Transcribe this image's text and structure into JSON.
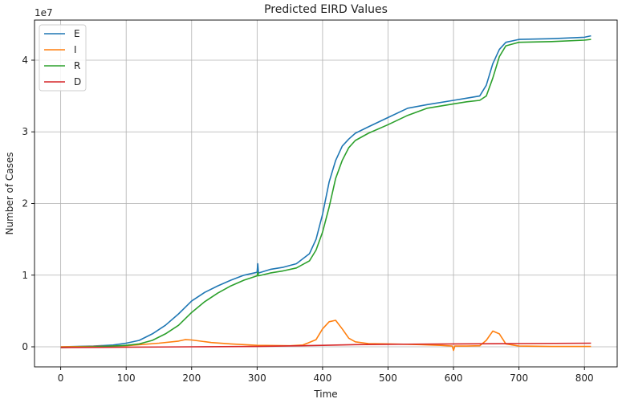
{
  "chart_data": {
    "type": "line",
    "title": "Predicted EIRD Values",
    "xlabel": "Time",
    "ylabel": "Number of Cases",
    "y_multiplier_label": "1e7",
    "xlim": [
      -40,
      850
    ],
    "ylim": [
      -2800000,
      45600000
    ],
    "x_ticks": [
      0,
      100,
      200,
      300,
      400,
      500,
      600,
      700,
      800
    ],
    "y_ticks": [
      0,
      10000000,
      20000000,
      30000000,
      40000000
    ],
    "y_tick_labels": [
      "0",
      "1",
      "2",
      "3",
      "4"
    ],
    "grid": true,
    "legend_position": "top-left",
    "series": [
      {
        "name": "E",
        "color": "#1f77b4",
        "points": [
          [
            0,
            0
          ],
          [
            50,
            100000
          ],
          [
            80,
            250000
          ],
          [
            100,
            500000
          ],
          [
            120,
            900000
          ],
          [
            140,
            1800000
          ],
          [
            160,
            3000000
          ],
          [
            180,
            4600000
          ],
          [
            200,
            6400000
          ],
          [
            220,
            7600000
          ],
          [
            240,
            8500000
          ],
          [
            260,
            9300000
          ],
          [
            280,
            10000000
          ],
          [
            300,
            10400000
          ],
          [
            301,
            11600000
          ],
          [
            302,
            10300000
          ],
          [
            320,
            10800000
          ],
          [
            340,
            11100000
          ],
          [
            360,
            11600000
          ],
          [
            380,
            13000000
          ],
          [
            390,
            15000000
          ],
          [
            400,
            18500000
          ],
          [
            410,
            23000000
          ],
          [
            420,
            26000000
          ],
          [
            430,
            28000000
          ],
          [
            440,
            29000000
          ],
          [
            450,
            29800000
          ],
          [
            470,
            30700000
          ],
          [
            500,
            32000000
          ],
          [
            530,
            33300000
          ],
          [
            560,
            33800000
          ],
          [
            600,
            34400000
          ],
          [
            620,
            34700000
          ],
          [
            640,
            35000000
          ],
          [
            650,
            36500000
          ],
          [
            660,
            39500000
          ],
          [
            670,
            41500000
          ],
          [
            680,
            42500000
          ],
          [
            700,
            42900000
          ],
          [
            750,
            43000000
          ],
          [
            800,
            43200000
          ],
          [
            810,
            43400000
          ]
        ]
      },
      {
        "name": "I",
        "color": "#ff7f0e",
        "points": [
          [
            0,
            0
          ],
          [
            50,
            50000
          ],
          [
            100,
            150000
          ],
          [
            150,
            500000
          ],
          [
            180,
            800000
          ],
          [
            190,
            1000000
          ],
          [
            200,
            950000
          ],
          [
            230,
            600000
          ],
          [
            260,
            400000
          ],
          [
            300,
            200000
          ],
          [
            350,
            150000
          ],
          [
            370,
            250000
          ],
          [
            390,
            1000000
          ],
          [
            400,
            2500000
          ],
          [
            410,
            3500000
          ],
          [
            420,
            3700000
          ],
          [
            430,
            2500000
          ],
          [
            440,
            1200000
          ],
          [
            450,
            700000
          ],
          [
            470,
            450000
          ],
          [
            500,
            400000
          ],
          [
            550,
            300000
          ],
          [
            580,
            200000
          ],
          [
            598,
            100000
          ],
          [
            600,
            -500000
          ],
          [
            602,
            100000
          ],
          [
            620,
            100000
          ],
          [
            640,
            150000
          ],
          [
            650,
            900000
          ],
          [
            660,
            2200000
          ],
          [
            670,
            1800000
          ],
          [
            680,
            400000
          ],
          [
            700,
            100000
          ],
          [
            750,
            50000
          ],
          [
            810,
            50000
          ]
        ]
      },
      {
        "name": "R",
        "color": "#2ca02c",
        "points": [
          [
            0,
            -100000
          ],
          [
            50,
            0
          ],
          [
            80,
            100000
          ],
          [
            100,
            200000
          ],
          [
            120,
            400000
          ],
          [
            140,
            900000
          ],
          [
            160,
            1800000
          ],
          [
            180,
            3000000
          ],
          [
            200,
            4800000
          ],
          [
            220,
            6300000
          ],
          [
            240,
            7500000
          ],
          [
            260,
            8500000
          ],
          [
            280,
            9300000
          ],
          [
            300,
            9900000
          ],
          [
            301,
            10400000
          ],
          [
            302,
            9900000
          ],
          [
            320,
            10300000
          ],
          [
            340,
            10600000
          ],
          [
            360,
            11000000
          ],
          [
            380,
            12000000
          ],
          [
            390,
            13500000
          ],
          [
            400,
            16000000
          ],
          [
            410,
            19500000
          ],
          [
            420,
            23500000
          ],
          [
            430,
            26000000
          ],
          [
            440,
            27800000
          ],
          [
            450,
            28800000
          ],
          [
            470,
            29800000
          ],
          [
            500,
            31000000
          ],
          [
            530,
            32300000
          ],
          [
            560,
            33300000
          ],
          [
            600,
            33900000
          ],
          [
            620,
            34200000
          ],
          [
            640,
            34400000
          ],
          [
            650,
            35000000
          ],
          [
            660,
            37500000
          ],
          [
            670,
            40500000
          ],
          [
            680,
            42000000
          ],
          [
            700,
            42500000
          ],
          [
            750,
            42600000
          ],
          [
            800,
            42800000
          ],
          [
            810,
            42900000
          ]
        ]
      },
      {
        "name": "D",
        "color": "#d62728",
        "points": [
          [
            0,
            -100000
          ],
          [
            100,
            -50000
          ],
          [
            200,
            0
          ],
          [
            300,
            50000
          ],
          [
            400,
            200000
          ],
          [
            450,
            300000
          ],
          [
            500,
            350000
          ],
          [
            600,
            400000
          ],
          [
            700,
            450000
          ],
          [
            810,
            500000
          ]
        ]
      }
    ]
  }
}
